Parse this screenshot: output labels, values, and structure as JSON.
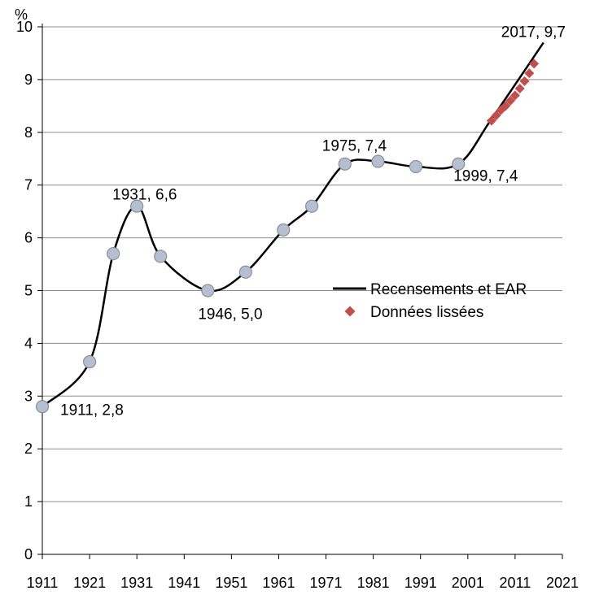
{
  "chart_data": {
    "type": "line",
    "y_unit": "%",
    "xlim": [
      1911,
      2021
    ],
    "ylim": [
      0,
      10
    ],
    "x_ticks": [
      "1911",
      "1921",
      "1931",
      "1941",
      "1951",
      "1961",
      "1971",
      "1981",
      "1991",
      "2001",
      "2011",
      "2021"
    ],
    "y_ticks": [
      "0",
      "1",
      "2",
      "3",
      "4",
      "5",
      "6",
      "7",
      "8",
      "9",
      "10"
    ],
    "grid": "horizontal",
    "legend_position": "right-middle",
    "series": [
      {
        "name": "Recensements et EAR",
        "style": "smooth-line",
        "color": "#000000",
        "x": [
          1911,
          1921,
          1926,
          1931,
          1936,
          1946,
          1954,
          1962,
          1968,
          1975,
          1982,
          1990,
          1999,
          2006,
          2017
        ],
        "y": [
          2.8,
          3.65,
          5.7,
          6.6,
          5.65,
          5.0,
          5.35,
          6.15,
          6.6,
          7.4,
          7.45,
          7.35,
          7.4,
          8.25,
          9.7
        ]
      },
      {
        "name": "Données lissées",
        "style": "diamond-markers",
        "color": "#c0504d",
        "x": [
          2006,
          2007,
          2008,
          2009,
          2010,
          2011,
          2012,
          2013,
          2014,
          2015
        ],
        "y": [
          8.22,
          8.32,
          8.42,
          8.5,
          8.6,
          8.7,
          8.83,
          8.97,
          9.12,
          9.3
        ]
      }
    ],
    "census_marker_color": "#b5bfcf",
    "annotations": [
      {
        "text": "1911, 2,8",
        "x": 1911,
        "y": 2.8
      },
      {
        "text": "1931, 6,6",
        "x": 1931,
        "y": 6.6
      },
      {
        "text": "1946, 5,0",
        "x": 1946,
        "y": 5.0
      },
      {
        "text": "1975, 7,4",
        "x": 1975,
        "y": 7.4
      },
      {
        "text": "1999, 7,4",
        "x": 1999,
        "y": 7.4
      },
      {
        "text": "2017, 9,7",
        "x": 2017,
        "y": 9.7
      }
    ]
  }
}
